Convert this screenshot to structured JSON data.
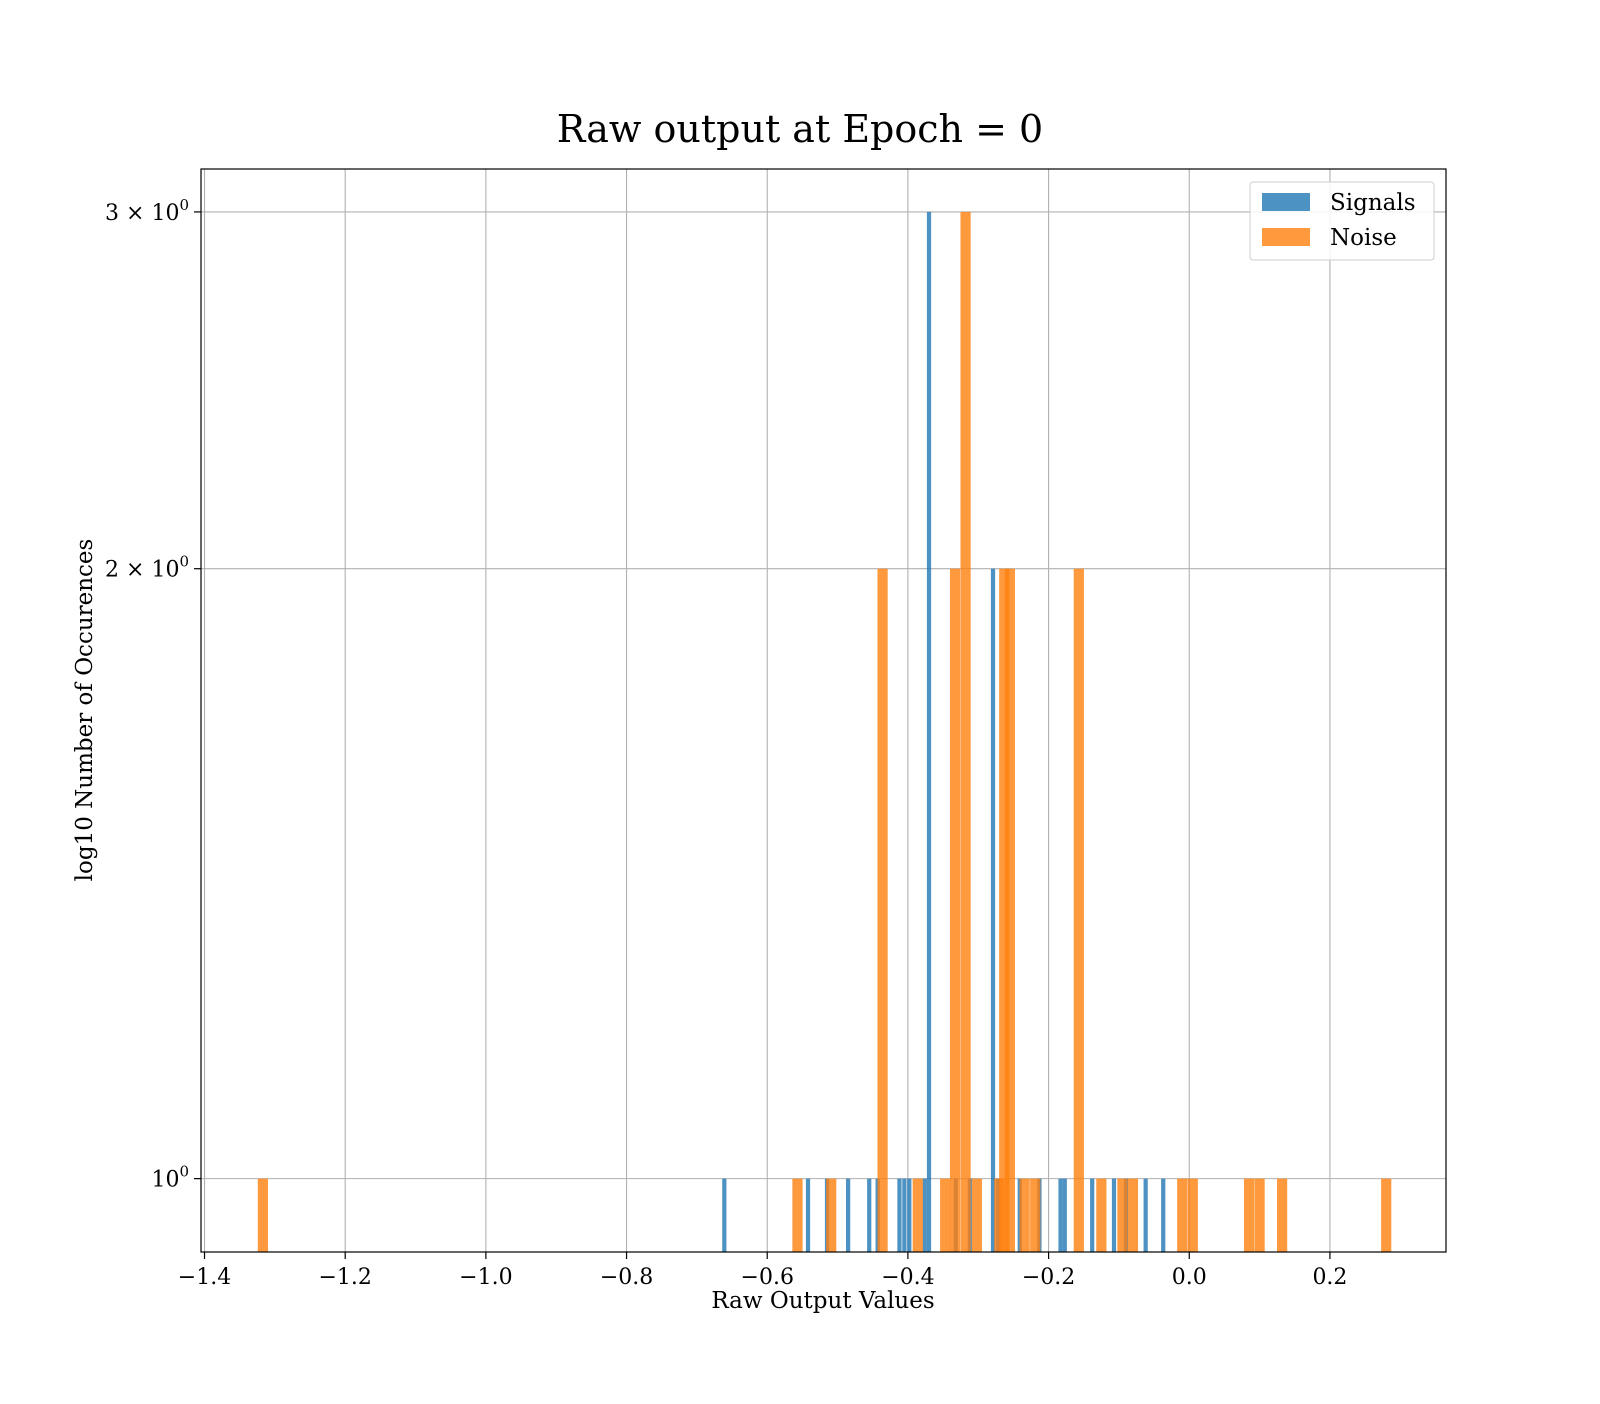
{
  "chart_data": {
    "type": "bar",
    "title": "Raw output at Epoch = 0",
    "xlabel": "Raw Output Values",
    "ylabel": "log10 Number of Occurences",
    "xlim": [
      -1.405,
      0.365
    ],
    "ylim": [
      0.92,
      3.15
    ],
    "y_scale": "log",
    "grid": true,
    "legend_position": "top-right",
    "x_ticks": [
      {
        "value": -1.4,
        "label": "−1.4"
      },
      {
        "value": -1.2,
        "label": "−1.2"
      },
      {
        "value": -1.0,
        "label": "−1.0"
      },
      {
        "value": -0.8,
        "label": "−0.8"
      },
      {
        "value": -0.6,
        "label": "−0.6"
      },
      {
        "value": -0.4,
        "label": "−0.4"
      },
      {
        "value": -0.2,
        "label": "−0.2"
      },
      {
        "value": 0.0,
        "label": "0.0"
      },
      {
        "value": 0.2,
        "label": "0.2"
      }
    ],
    "y_ticks": [
      {
        "value": 1,
        "base": "10",
        "exp": "0"
      },
      {
        "value": 2,
        "base": "2 × 10",
        "exp": "0"
      },
      {
        "value": 3,
        "base": "3 × 10",
        "exp": "0"
      }
    ],
    "series": [
      {
        "name": "Signals",
        "color": "#1f77b4",
        "bin_width": 0.006,
        "bars": [
          {
            "x": -0.661,
            "count": 1
          },
          {
            "x": -0.542,
            "count": 1
          },
          {
            "x": -0.515,
            "count": 1
          },
          {
            "x": -0.485,
            "count": 1
          },
          {
            "x": -0.455,
            "count": 1
          },
          {
            "x": -0.443,
            "count": 1
          },
          {
            "x": -0.412,
            "count": 1
          },
          {
            "x": -0.405,
            "count": 1
          },
          {
            "x": -0.398,
            "count": 1
          },
          {
            "x": -0.376,
            "count": 1
          },
          {
            "x": -0.37,
            "count": 3
          },
          {
            "x": -0.332,
            "count": 1
          },
          {
            "x": -0.312,
            "count": 1
          },
          {
            "x": -0.279,
            "count": 2
          },
          {
            "x": -0.272,
            "count": 1
          },
          {
            "x": -0.241,
            "count": 1
          },
          {
            "x": -0.213,
            "count": 1
          },
          {
            "x": -0.183,
            "count": 1
          },
          {
            "x": -0.177,
            "count": 1
          },
          {
            "x": -0.138,
            "count": 1
          },
          {
            "x": -0.107,
            "count": 1
          },
          {
            "x": -0.09,
            "count": 1
          },
          {
            "x": -0.062,
            "count": 1
          },
          {
            "x": -0.037,
            "count": 1
          }
        ]
      },
      {
        "name": "Noise",
        "color": "#ff7f0e",
        "bin_width": 0.0145,
        "bars": [
          {
            "x": -1.317,
            "count": 1
          },
          {
            "x": -0.557,
            "count": 1
          },
          {
            "x": -0.509,
            "count": 1
          },
          {
            "x": -0.436,
            "count": 2
          },
          {
            "x": -0.386,
            "count": 1
          },
          {
            "x": -0.347,
            "count": 1
          },
          {
            "x": -0.333,
            "count": 2
          },
          {
            "x": -0.318,
            "count": 3
          },
          {
            "x": -0.302,
            "count": 1
          },
          {
            "x": -0.27,
            "count": 1
          },
          {
            "x": -0.263,
            "count": 2
          },
          {
            "x": -0.255,
            "count": 2
          },
          {
            "x": -0.234,
            "count": 1
          },
          {
            "x": -0.219,
            "count": 1
          },
          {
            "x": -0.157,
            "count": 2
          },
          {
            "x": -0.125,
            "count": 1
          },
          {
            "x": -0.095,
            "count": 1
          },
          {
            "x": -0.08,
            "count": 1
          },
          {
            "x": -0.01,
            "count": 1
          },
          {
            "x": 0.005,
            "count": 1
          },
          {
            "x": 0.085,
            "count": 1
          },
          {
            "x": 0.1,
            "count": 1
          },
          {
            "x": 0.132,
            "count": 1
          },
          {
            "x": 0.28,
            "count": 1
          }
        ]
      }
    ]
  }
}
